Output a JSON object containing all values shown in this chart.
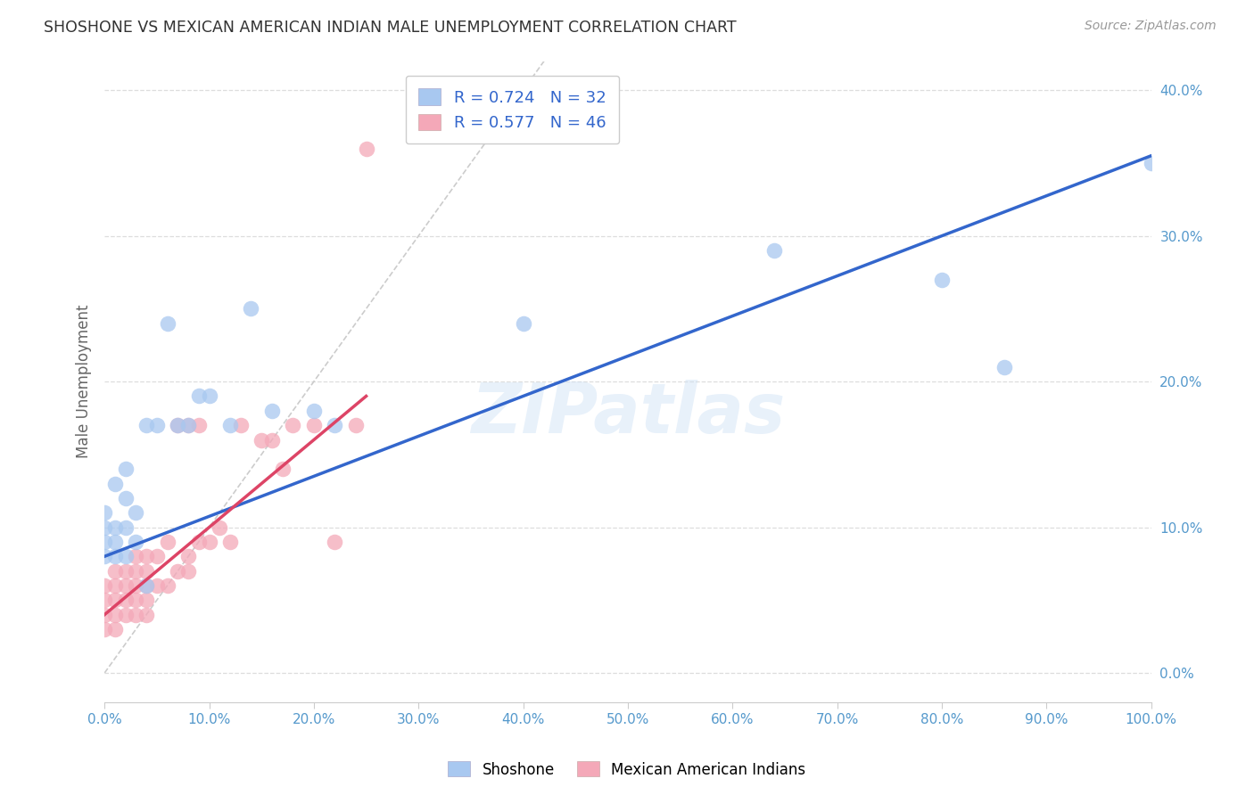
{
  "title": "SHOSHONE VS MEXICAN AMERICAN INDIAN MALE UNEMPLOYMENT CORRELATION CHART",
  "source": "Source: ZipAtlas.com",
  "ylabel": "Male Unemployment",
  "watermark": "ZIPatlas",
  "shoshone_R": 0.724,
  "shoshone_N": 32,
  "mexican_R": 0.577,
  "mexican_N": 46,
  "xlim": [
    0,
    1.0
  ],
  "ylim": [
    -0.02,
    0.42
  ],
  "xticks": [
    0.0,
    0.1,
    0.2,
    0.3,
    0.4,
    0.5,
    0.6,
    0.7,
    0.8,
    0.9,
    1.0
  ],
  "yticks": [
    0.0,
    0.1,
    0.2,
    0.3,
    0.4
  ],
  "shoshone_color": "#a8c8f0",
  "mexican_color": "#f4a8b8",
  "shoshone_line_color": "#3366cc",
  "mexican_line_color": "#dd4466",
  "diagonal_color": "#cccccc",
  "background_color": "#ffffff",
  "grid_color": "#dddddd",
  "tick_color": "#5599cc",
  "title_color": "#333333",
  "source_color": "#999999",
  "shoshone_x": [
    0.0,
    0.0,
    0.0,
    0.0,
    0.01,
    0.01,
    0.01,
    0.01,
    0.02,
    0.02,
    0.02,
    0.02,
    0.03,
    0.03,
    0.04,
    0.04,
    0.05,
    0.06,
    0.07,
    0.08,
    0.09,
    0.1,
    0.12,
    0.14,
    0.16,
    0.2,
    0.22,
    0.4,
    0.64,
    0.8,
    0.86,
    1.0
  ],
  "shoshone_y": [
    0.08,
    0.09,
    0.1,
    0.11,
    0.08,
    0.09,
    0.1,
    0.13,
    0.08,
    0.1,
    0.12,
    0.14,
    0.09,
    0.11,
    0.06,
    0.17,
    0.17,
    0.24,
    0.17,
    0.17,
    0.19,
    0.19,
    0.17,
    0.25,
    0.18,
    0.18,
    0.17,
    0.24,
    0.29,
    0.27,
    0.21,
    0.35
  ],
  "mexican_x": [
    0.0,
    0.0,
    0.0,
    0.0,
    0.01,
    0.01,
    0.01,
    0.01,
    0.01,
    0.02,
    0.02,
    0.02,
    0.02,
    0.03,
    0.03,
    0.03,
    0.03,
    0.03,
    0.04,
    0.04,
    0.04,
    0.04,
    0.04,
    0.05,
    0.05,
    0.06,
    0.06,
    0.07,
    0.07,
    0.08,
    0.08,
    0.08,
    0.09,
    0.09,
    0.1,
    0.11,
    0.12,
    0.13,
    0.15,
    0.16,
    0.17,
    0.18,
    0.2,
    0.22,
    0.24,
    0.25
  ],
  "mexican_y": [
    0.03,
    0.04,
    0.05,
    0.06,
    0.03,
    0.04,
    0.05,
    0.06,
    0.07,
    0.04,
    0.05,
    0.06,
    0.07,
    0.04,
    0.05,
    0.06,
    0.07,
    0.08,
    0.04,
    0.05,
    0.06,
    0.07,
    0.08,
    0.06,
    0.08,
    0.06,
    0.09,
    0.07,
    0.17,
    0.07,
    0.08,
    0.17,
    0.09,
    0.17,
    0.09,
    0.1,
    0.09,
    0.17,
    0.16,
    0.16,
    0.14,
    0.17,
    0.17,
    0.09,
    0.17,
    0.36
  ],
  "shoshone_line_x0": 0.0,
  "shoshone_line_y0": 0.08,
  "shoshone_line_x1": 1.0,
  "shoshone_line_y1": 0.355,
  "mexican_line_x0": 0.0,
  "mexican_line_y0": 0.04,
  "mexican_line_x1": 0.25,
  "mexican_line_y1": 0.19
}
